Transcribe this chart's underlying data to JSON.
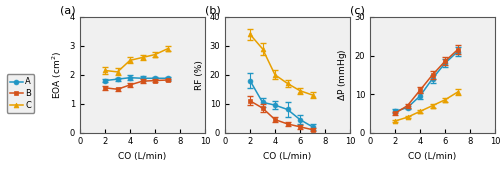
{
  "co_values": [
    2,
    3,
    4,
    5,
    6,
    7
  ],
  "eoa_A": [
    1.8,
    1.85,
    1.9,
    1.88,
    1.88,
    1.88
  ],
  "eoa_B": [
    1.55,
    1.5,
    1.65,
    1.78,
    1.8,
    1.82
  ],
  "eoa_C": [
    2.15,
    2.1,
    2.5,
    2.6,
    2.7,
    2.9
  ],
  "eoa_A_err": [
    0.05,
    0.05,
    0.08,
    0.08,
    0.06,
    0.05
  ],
  "eoa_B_err": [
    0.06,
    0.06,
    0.06,
    0.06,
    0.05,
    0.05
  ],
  "eoa_C_err": [
    0.12,
    0.12,
    0.1,
    0.08,
    0.08,
    0.08
  ],
  "rf_A": [
    18.0,
    10.5,
    9.5,
    8.0,
    4.5,
    2.0
  ],
  "rf_B": [
    11.0,
    8.5,
    4.5,
    3.0,
    2.0,
    1.0
  ],
  "rf_C": [
    34.0,
    29.0,
    20.0,
    17.0,
    14.5,
    13.0
  ],
  "rf_A_err": [
    2.5,
    1.5,
    1.5,
    2.5,
    1.5,
    1.0
  ],
  "rf_B_err": [
    1.5,
    1.5,
    1.0,
    0.8,
    0.6,
    0.5
  ],
  "rf_C_err": [
    2.0,
    2.0,
    1.5,
    1.2,
    1.0,
    1.0
  ],
  "dp_A": [
    5.5,
    6.5,
    9.5,
    14.0,
    18.0,
    21.0
  ],
  "dp_B": [
    5.0,
    7.0,
    11.0,
    15.0,
    18.5,
    21.5
  ],
  "dp_C": [
    3.0,
    4.0,
    5.5,
    7.0,
    8.5,
    10.5
  ],
  "dp_A_err": [
    0.5,
    0.5,
    0.8,
    1.0,
    1.0,
    1.2
  ],
  "dp_B_err": [
    0.4,
    0.5,
    0.8,
    1.0,
    1.0,
    1.2
  ],
  "dp_C_err": [
    0.3,
    0.3,
    0.4,
    0.5,
    0.6,
    0.8
  ],
  "color_A": "#2196c4",
  "color_B": "#d4521a",
  "color_C": "#e8a000",
  "marker_A": "o",
  "marker_B": "s",
  "marker_C": "^",
  "eoa_ylim": [
    0,
    4
  ],
  "eoa_yticks": [
    0,
    1,
    2,
    3,
    4
  ],
  "rf_ylim": [
    0,
    40
  ],
  "rf_yticks": [
    0,
    10,
    20,
    30,
    40
  ],
  "dp_ylim": [
    0,
    30
  ],
  "dp_yticks": [
    0,
    10,
    20,
    30
  ],
  "xlim": [
    0,
    10
  ],
  "xticks": [
    0,
    2,
    4,
    6,
    8,
    10
  ]
}
